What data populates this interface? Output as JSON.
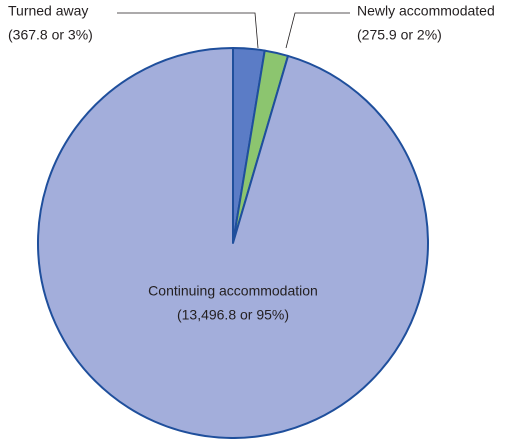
{
  "chart_data": {
    "type": "pie",
    "categories": [
      "Turned away",
      "Newly accommodated",
      "Continuing accommodation"
    ],
    "values": [
      367.8,
      275.9,
      13496.8
    ],
    "value_labels": [
      "(367.8 or 3%)",
      "(275.9 or 2%)",
      "(13,496.8 or 95%)"
    ],
    "colors": [
      "#5b7cc6",
      "#8cc56f",
      "#a3aedb"
    ]
  }
}
